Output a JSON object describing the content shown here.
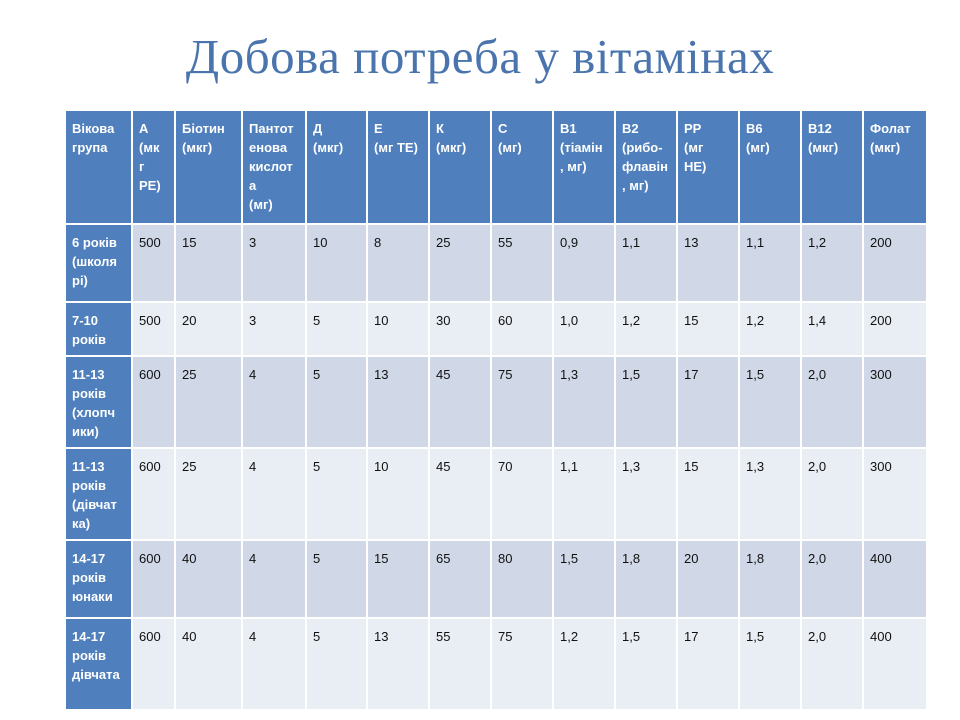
{
  "title": "Добова потреба у вітамінах",
  "colors": {
    "title": "#4a74ad",
    "header_bg": "#4f7fbd",
    "row_odd": "#d0d8e8",
    "row_even": "#e9edf4"
  },
  "table": {
    "headers": [
      "Вікова\nгрупа",
      "А\n(мк\nг\nРЕ)",
      "Біотин\n(мкг)",
      "Пантот\nенова\nкислот\nа\n(мг)",
      "Д\n(мкг)",
      "Е\n(мг ТЕ)",
      "К\n(мкг)",
      "С\n(мг)",
      "В1\n(тіамін\n, мг)",
      "В2\n(рибо-\nфлавін\n, мг)",
      "РР\n(мг\nНЕ)",
      "В6\n(мг)",
      "В12\n(мкг)",
      "Фолат\n(мкг)"
    ],
    "rows": [
      {
        "group": "6 років\n(школя\nрі)",
        "values": [
          "500",
          "15",
          "3",
          "10",
          "8",
          "25",
          "55",
          "0,9",
          "1,1",
          "13",
          "1,1",
          "1,2",
          "200"
        ]
      },
      {
        "group": "7-10\nроків",
        "values": [
          "500",
          "20",
          "3",
          "5",
          "10",
          "30",
          "60",
          "1,0",
          "1,2",
          "15",
          "1,2",
          "1,4",
          "200"
        ]
      },
      {
        "group": "11-13\nроків\n(хлопч\nики)",
        "values": [
          "600",
          "25",
          "4",
          "5",
          "13",
          "45",
          "75",
          "1,3",
          "1,5",
          "17",
          "1,5",
          "2,0",
          "300"
        ]
      },
      {
        "group": "11-13\nроків\n(дівчат\nка)",
        "values": [
          "600",
          "25",
          "4",
          "5",
          "10",
          "45",
          "70",
          "1,1",
          "1,3",
          "15",
          "1,3",
          "2,0",
          "300"
        ]
      },
      {
        "group": "14-17\nроків\nюнаки",
        "values": [
          "600",
          "40",
          "4",
          "5",
          "15",
          "65",
          "80",
          "1,5",
          "1,8",
          "20",
          "1,8",
          "2,0",
          "400"
        ]
      },
      {
        "group": "14-17\nроків\nдівчата",
        "values": [
          "600",
          "40",
          "4",
          "5",
          "13",
          "55",
          "75",
          "1,2",
          "1,5",
          "17",
          "1,5",
          "2,0",
          "400"
        ]
      }
    ]
  }
}
